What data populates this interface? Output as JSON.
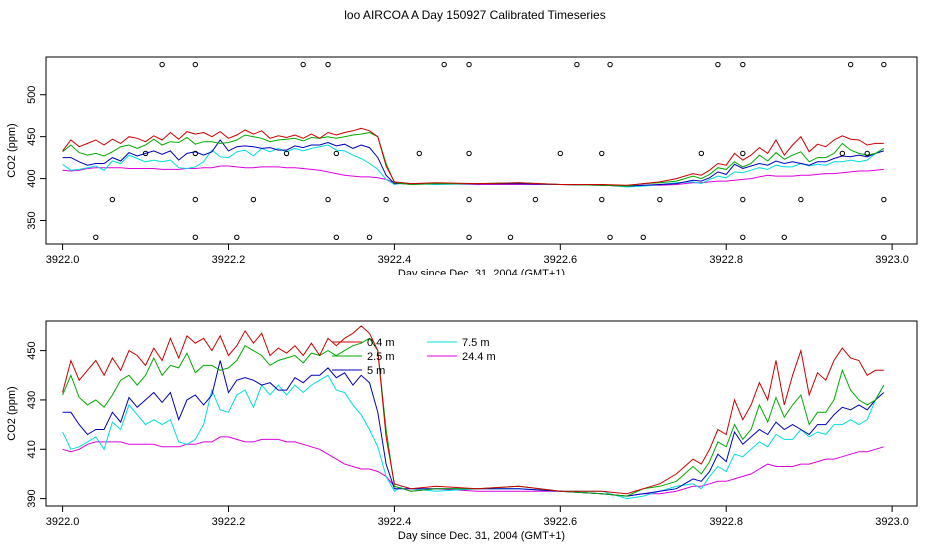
{
  "title": "loo AIRCOA A  Day 150927  Calibrated Timeseries",
  "chart_data": [
    {
      "type": "scatter",
      "xlabel": "Day since Dec. 31, 2004 (GMT+1)",
      "ylabel": "CO2 (ppm)",
      "xlim": [
        3921.98,
        3923.03
      ],
      "ylim": [
        322,
        545
      ],
      "xticks": [
        "3922.0",
        "3922.2",
        "3922.4",
        "3922.6",
        "3922.8",
        "3923.0"
      ],
      "yticks": [
        "350",
        "400",
        "450",
        "500"
      ],
      "grid": false,
      "series": [
        {
          "color": "#cc0000",
          "x": [
            3922.0,
            3922.01,
            3922.02,
            3922.03,
            3922.04,
            3922.05,
            3922.06,
            3922.07,
            3922.08,
            3922.09,
            3922.1,
            3922.11,
            3922.12,
            3922.13,
            3922.14,
            3922.15,
            3922.16,
            3922.17,
            3922.18,
            3922.19,
            3922.2,
            3922.21,
            3922.22,
            3922.23,
            3922.24,
            3922.25,
            3922.26,
            3922.27,
            3922.28,
            3922.29,
            3922.3,
            3922.31,
            3922.32,
            3922.33,
            3922.34,
            3922.35,
            3922.36,
            3922.37,
            3922.38,
            3922.39,
            3922.4,
            3922.41,
            3922.42,
            3922.45,
            3922.5,
            3922.55,
            3922.6,
            3922.65,
            3922.68,
            3922.7,
            3922.72,
            3922.74,
            3922.76,
            3922.77,
            3922.78,
            3922.79,
            3922.8,
            3922.81,
            3922.82,
            3922.83,
            3922.84,
            3922.85,
            3922.86,
            3922.87,
            3922.88,
            3922.89,
            3922.9,
            3922.91,
            3922.92,
            3922.93,
            3922.94,
            3922.95,
            3922.96,
            3922.97,
            3922.98,
            3922.99
          ],
          "y": [
            433,
            446,
            438,
            442,
            446,
            440,
            447,
            442,
            450,
            448,
            444,
            451,
            446,
            455,
            447,
            456,
            453,
            455,
            450,
            456,
            448,
            452,
            458,
            453,
            457,
            448,
            451,
            449,
            452,
            448,
            453,
            448,
            455,
            452,
            455,
            457,
            460,
            457,
            450,
            415,
            396,
            395,
            394,
            395,
            394,
            395,
            393,
            393,
            392,
            394,
            396,
            400,
            406,
            404,
            410,
            418,
            416,
            430,
            422,
            428,
            437,
            430,
            446,
            428,
            440,
            450,
            432,
            441,
            438,
            446,
            451,
            447,
            446,
            440,
            442,
            442
          ]
        },
        {
          "color": "#00aa00",
          "x": [
            3922.0,
            3922.01,
            3922.02,
            3922.03,
            3922.04,
            3922.05,
            3922.06,
            3922.07,
            3922.08,
            3922.09,
            3922.1,
            3922.11,
            3922.12,
            3922.13,
            3922.14,
            3922.15,
            3922.16,
            3922.17,
            3922.18,
            3922.19,
            3922.2,
            3922.21,
            3922.22,
            3922.23,
            3922.24,
            3922.25,
            3922.26,
            3922.27,
            3922.28,
            3922.29,
            3922.3,
            3922.31,
            3922.32,
            3922.33,
            3922.34,
            3922.35,
            3922.36,
            3922.37,
            3922.38,
            3922.39,
            3922.4,
            3922.41,
            3922.42,
            3922.45,
            3922.5,
            3922.55,
            3922.6,
            3922.65,
            3922.68,
            3922.7,
            3922.72,
            3922.74,
            3922.76,
            3922.77,
            3922.78,
            3922.79,
            3922.8,
            3922.81,
            3922.82,
            3922.83,
            3922.84,
            3922.85,
            3922.86,
            3922.87,
            3922.88,
            3922.89,
            3922.9,
            3922.91,
            3922.92,
            3922.93,
            3922.94,
            3922.95,
            3922.96,
            3922.97,
            3922.98,
            3922.99
          ],
          "y": [
            432,
            440,
            431,
            428,
            430,
            427,
            432,
            438,
            440,
            436,
            440,
            447,
            440,
            444,
            443,
            449,
            441,
            444,
            444,
            442,
            443,
            446,
            452,
            450,
            448,
            444,
            446,
            447,
            448,
            445,
            449,
            448,
            450,
            448,
            450,
            452,
            453,
            455,
            450,
            418,
            395,
            394,
            393,
            394,
            394,
            395,
            393,
            392,
            391,
            394,
            395,
            397,
            403,
            400,
            405,
            413,
            411,
            420,
            414,
            418,
            428,
            421,
            431,
            423,
            428,
            432,
            420,
            425,
            425,
            430,
            442,
            434,
            430,
            428,
            430,
            436
          ]
        },
        {
          "color": "#0000bb",
          "x": [
            3922.0,
            3922.01,
            3922.02,
            3922.03,
            3922.04,
            3922.05,
            3922.06,
            3922.07,
            3922.08,
            3922.09,
            3922.1,
            3922.11,
            3922.12,
            3922.13,
            3922.14,
            3922.15,
            3922.16,
            3922.17,
            3922.18,
            3922.19,
            3922.2,
            3922.21,
            3922.22,
            3922.23,
            3922.24,
            3922.25,
            3922.26,
            3922.27,
            3922.28,
            3922.29,
            3922.3,
            3922.31,
            3922.32,
            3922.33,
            3922.34,
            3922.35,
            3922.36,
            3922.37,
            3922.38,
            3922.39,
            3922.4,
            3922.41,
            3922.42,
            3922.45,
            3922.5,
            3922.55,
            3922.6,
            3922.65,
            3922.68,
            3922.7,
            3922.72,
            3922.74,
            3922.76,
            3922.77,
            3922.78,
            3922.79,
            3922.8,
            3922.81,
            3922.82,
            3922.83,
            3922.84,
            3922.85,
            3922.86,
            3922.87,
            3922.88,
            3922.89,
            3922.9,
            3922.91,
            3922.92,
            3922.93,
            3922.94,
            3922.95,
            3922.96,
            3922.97,
            3922.98,
            3922.99
          ],
          "y": [
            425,
            425,
            420,
            416,
            418,
            418,
            425,
            421,
            431,
            427,
            430,
            433,
            429,
            433,
            422,
            430,
            432,
            428,
            432,
            446,
            433,
            438,
            439,
            438,
            436,
            437,
            434,
            434,
            439,
            437,
            440,
            440,
            443,
            439,
            441,
            436,
            440,
            437,
            425,
            404,
            394,
            394,
            394,
            394,
            394,
            394,
            393,
            392,
            391,
            392,
            393,
            394,
            398,
            397,
            401,
            408,
            405,
            417,
            412,
            415,
            418,
            416,
            421,
            418,
            420,
            418,
            416,
            420,
            420,
            424,
            427,
            426,
            428,
            426,
            430,
            433
          ]
        },
        {
          "color": "#00dddd",
          "x": [
            3922.0,
            3922.01,
            3922.02,
            3922.03,
            3922.04,
            3922.05,
            3922.06,
            3922.07,
            3922.08,
            3922.09,
            3922.1,
            3922.11,
            3922.12,
            3922.13,
            3922.14,
            3922.15,
            3922.16,
            3922.17,
            3922.18,
            3922.19,
            3922.2,
            3922.21,
            3922.22,
            3922.23,
            3922.24,
            3922.25,
            3922.26,
            3922.27,
            3922.28,
            3922.29,
            3922.3,
            3922.31,
            3922.32,
            3922.33,
            3922.34,
            3922.35,
            3922.36,
            3922.37,
            3922.38,
            3922.39,
            3922.4,
            3922.41,
            3922.42,
            3922.45,
            3922.5,
            3922.55,
            3922.6,
            3922.65,
            3922.68,
            3922.7,
            3922.72,
            3922.74,
            3922.76,
            3922.77,
            3922.78,
            3922.79,
            3922.8,
            3922.81,
            3922.82,
            3922.83,
            3922.84,
            3922.85,
            3922.86,
            3922.87,
            3922.88,
            3922.89,
            3922.9,
            3922.91,
            3922.92,
            3922.93,
            3922.94,
            3922.95,
            3922.96,
            3922.97,
            3922.98,
            3922.99
          ],
          "y": [
            417,
            410,
            411,
            413,
            415,
            410,
            421,
            418,
            428,
            424,
            420,
            422,
            420,
            422,
            413,
            412,
            414,
            420,
            434,
            426,
            425,
            432,
            434,
            427,
            436,
            432,
            436,
            432,
            436,
            433,
            436,
            438,
            440,
            434,
            433,
            428,
            424,
            418,
            411,
            399,
            393,
            395,
            394,
            393,
            394,
            394,
            393,
            393,
            390,
            391,
            393,
            395,
            396,
            394,
            399,
            403,
            401,
            408,
            407,
            410,
            413,
            411,
            416,
            414,
            414,
            418,
            415,
            417,
            416,
            420,
            420,
            422,
            420,
            422,
            430,
            436
          ]
        },
        {
          "color": "#dd00dd",
          "x": [
            3922.0,
            3922.01,
            3922.02,
            3922.03,
            3922.04,
            3922.05,
            3922.06,
            3922.07,
            3922.08,
            3922.09,
            3922.1,
            3922.11,
            3922.12,
            3922.13,
            3922.14,
            3922.15,
            3922.16,
            3922.17,
            3922.18,
            3922.19,
            3922.2,
            3922.21,
            3922.22,
            3922.23,
            3922.24,
            3922.25,
            3922.26,
            3922.27,
            3922.28,
            3922.29,
            3922.3,
            3922.31,
            3922.32,
            3922.33,
            3922.34,
            3922.35,
            3922.36,
            3922.37,
            3922.38,
            3922.39,
            3922.4,
            3922.41,
            3922.42,
            3922.45,
            3922.5,
            3922.55,
            3922.6,
            3922.65,
            3922.68,
            3922.7,
            3922.72,
            3922.74,
            3922.76,
            3922.77,
            3922.78,
            3922.79,
            3922.8,
            3922.81,
            3922.82,
            3922.83,
            3922.84,
            3922.85,
            3922.86,
            3922.87,
            3922.88,
            3922.89,
            3922.9,
            3922.91,
            3922.92,
            3922.93,
            3922.94,
            3922.95,
            3922.96,
            3922.97,
            3922.98,
            3922.99
          ],
          "y": [
            410,
            409,
            410,
            412,
            413,
            413,
            413,
            413,
            412,
            412,
            412,
            412,
            411,
            411,
            411,
            412,
            412,
            413,
            413,
            415,
            415,
            414,
            413,
            413,
            414,
            414,
            414,
            413,
            413,
            412,
            411,
            410,
            408,
            406,
            404,
            403,
            402,
            402,
            401,
            399,
            395,
            394,
            393,
            394,
            393,
            393,
            393,
            392,
            391,
            392,
            392,
            393,
            395,
            395,
            396,
            397,
            397,
            398,
            399,
            400,
            402,
            404,
            403,
            403,
            403,
            404,
            404,
            405,
            406,
            406,
            407,
            408,
            409,
            409,
            410,
            411
          ]
        }
      ],
      "points": {
        "color": "#000000",
        "x": [
          3922.04,
          3922.06,
          3922.1,
          3922.12,
          3922.16,
          3922.16,
          3922.16,
          3922.16,
          3922.21,
          3922.23,
          3922.27,
          3922.29,
          3922.32,
          3922.32,
          3922.33,
          3922.33,
          3922.37,
          3922.39,
          3922.43,
          3922.46,
          3922.49,
          3922.49,
          3922.49,
          3922.49,
          3922.54,
          3922.57,
          3922.6,
          3922.62,
          3922.65,
          3922.65,
          3922.66,
          3922.66,
          3922.7,
          3922.72,
          3922.77,
          3922.79,
          3922.82,
          3922.82,
          3922.82,
          3922.82,
          3922.87,
          3922.89,
          3922.94,
          3922.95,
          3922.97,
          3922.99,
          3922.99,
          3922.99
        ],
        "y": [
          330,
          375,
          430,
          536,
          330,
          375,
          430,
          536,
          330,
          375,
          430,
          536,
          375,
          536,
          330,
          430,
          330,
          375,
          430,
          536,
          330,
          375,
          430,
          536,
          330,
          375,
          430,
          536,
          375,
          430,
          536,
          330,
          330,
          375,
          430,
          536,
          330,
          375,
          430,
          536,
          330,
          375,
          430,
          536,
          430,
          536,
          375,
          330
        ]
      }
    },
    {
      "type": "line",
      "xlabel": "Day since Dec. 31, 2004 (GMT+1)",
      "ylabel": "CO2 (ppm)",
      "xlim": [
        3921.98,
        3923.03
      ],
      "ylim": [
        387,
        462
      ],
      "xticks": [
        "3922.0",
        "3922.2",
        "3922.4",
        "3922.6",
        "3922.8",
        "3923.0"
      ],
      "yticks": [
        "390",
        "410",
        "430",
        "450"
      ],
      "grid": false,
      "legend_position": "top-left",
      "legend": [
        {
          "name": "0.4 m",
          "color": "#cc0000"
        },
        {
          "name": "2.5 m",
          "color": "#00aa00"
        },
        {
          "name": "5 m",
          "color": "#0000bb"
        },
        {
          "name": "7.5 m",
          "color": "#00dddd"
        },
        {
          "name": "24.4 m",
          "color": "#dd00dd"
        }
      ],
      "use_series_from_panel": 0
    }
  ]
}
